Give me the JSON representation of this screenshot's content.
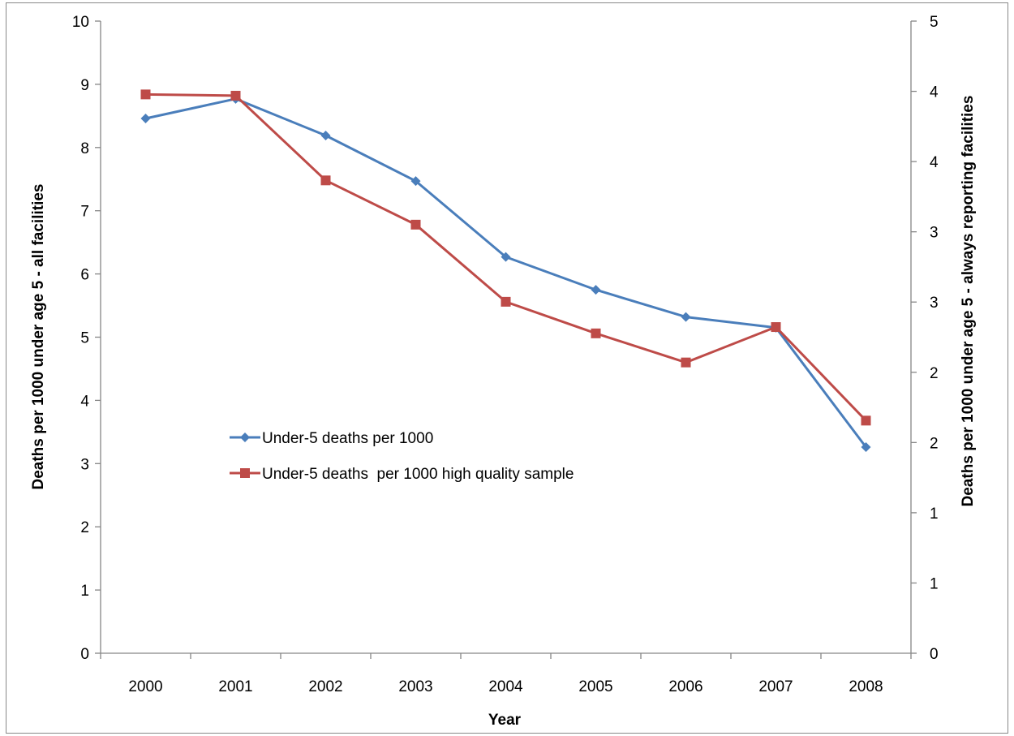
{
  "chart_data": {
    "type": "line",
    "title": "",
    "categories": [
      "2000",
      "2001",
      "2002",
      "2003",
      "2004",
      "2005",
      "2006",
      "2007",
      "2008"
    ],
    "xlabel": "Year",
    "ylabel": "Deaths per 1000 under age 5 - all facilities",
    "y2label": "Deaths per 1000 under age 5 - always reporting facilities",
    "ylim": [
      0,
      10
    ],
    "yticks": [
      "0",
      "1",
      "2",
      "3",
      "4",
      "5",
      "6",
      "7",
      "8",
      "9",
      "10"
    ],
    "y2lim": [
      0,
      5
    ],
    "y2ticks": [
      "0",
      "1",
      "1",
      "2",
      "2",
      "3",
      "3",
      "4",
      "4",
      "5"
    ],
    "grid": false,
    "legend_position": "center-left",
    "series": [
      {
        "name": "Under-5 deaths per 1000",
        "axis": "left",
        "color": "#4a7ebb",
        "marker": "diamond",
        "values": [
          8.46,
          8.77,
          8.19,
          7.47,
          6.27,
          5.75,
          5.32,
          5.15,
          3.26
        ]
      },
      {
        "name": "Under-5 deaths  per 1000 high quality sample",
        "axis": "right",
        "color": "#be4b48",
        "marker": "square",
        "values": [
          4.42,
          4.41,
          3.74,
          3.39,
          2.78,
          2.53,
          2.3,
          2.58,
          1.84
        ]
      }
    ]
  }
}
